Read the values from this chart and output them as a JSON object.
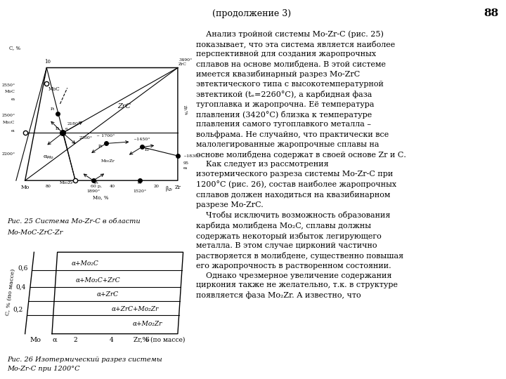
{
  "title": "(продолжение 3)",
  "page_num": "88",
  "bg_color": "#ffffff",
  "fig1_caption_line1": "Рис. 25 Система Mo-Zr-C в области",
  "fig1_caption_line2": "Mo-MoC-ZrC-Zr",
  "fig2_caption_line1": "Рис. 26 Изотермический разрез системы",
  "fig2_caption_line2": "Mo-Zr-C при 1200°С",
  "main_text": "    Анализ тройной системы Mo-Zr-C (рис. 25)\nпоказывает, что эта система является наиболее\nперспективной для создания жаропрочных\nсплавов на основе молибдена. В этой системе\nимеется квазибинарный разрез Mo-ZrC\nэвтектического типа с высокотемпературной\nэвтектикой (tₑ=2260°C), а карбидная фаза\nтугоплавка и жаропрочна. Её температура\nплавления (3420°C) близка к температуре\nплавления самого тугоплавкого металла –\nвольфрама. Не случайно, что практически все\nмалолегированные жаропрочные сплавы на\nоснове молибдена содержат в своей основе Zr и С.\n    Как следует из рассмотрения\nизотермического разреза системы Mo-Zr-C при\n1200°C (рис. 26), состав наиболее жаропрочных\nсплавов должен находиться на квазибинарном\nразрезе Mo-ZrC.\n    Чтобы исключить возможность образования\nкарбида молибдена Mo₂C, сплавы должны\nсодержать некоторый избыток легирующего\nметалла. В этом случае цирконий частично\nрастворяется в молибдене, существенно повышая\nего жаропрочность в растворенном состоянии.\n    Однако чрезмерное увеличение содержания\nциркония также не желательно, т.к. в структуре\nпоявляется фаза Mo₂Zr. А известно, что"
}
